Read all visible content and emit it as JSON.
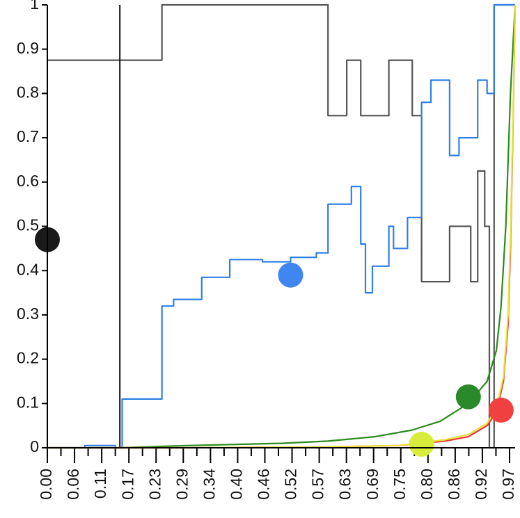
{
  "chart_data": {
    "type": "line",
    "title": "",
    "xlabel": "",
    "ylabel": "",
    "xlim": [
      0,
      1
    ],
    "ylim": [
      0,
      1
    ],
    "y_ticks": [
      "0",
      "0.1",
      "0.2",
      "0.3",
      "0.4",
      "0.5",
      "0.6",
      "0.7",
      "0.8",
      "0.9",
      "1"
    ],
    "x_tick_labels": [
      "0.00",
      "0.06",
      "0.11",
      "0.17",
      "0.23",
      "0.29",
      "0.34",
      "0.40",
      "0.46",
      "0.52",
      "0.57",
      "0.63",
      "0.69",
      "0.75",
      "0.80",
      "0.86",
      "0.92",
      "0.97"
    ],
    "grid": false,
    "legend": "none",
    "vertical_marker_x": 0.155,
    "series": [
      {
        "color": "#555555",
        "marker_color": "#1a1a1a",
        "marker": [
          0.0,
          0.47
        ],
        "x": [
          0.0,
          0.245,
          0.245,
          0.6,
          0.6,
          0.64,
          0.64,
          0.67,
          0.67,
          0.73,
          0.73,
          0.78,
          0.78,
          0.8,
          0.8,
          0.86,
          0.86,
          0.905,
          0.905,
          0.92,
          0.92,
          0.935,
          0.935,
          0.945,
          0.945,
          0.955,
          0.955,
          0.97,
          0.97,
          1.0
        ],
        "y": [
          0.875,
          0.875,
          1.0,
          1.0,
          0.75,
          0.75,
          0.875,
          0.875,
          0.75,
          0.75,
          0.875,
          0.875,
          0.75,
          0.75,
          0.375,
          0.375,
          0.5,
          0.5,
          0.375,
          0.375,
          0.625,
          0.625,
          0.5,
          0.5,
          0.0,
          0.0,
          1.0,
          1.0,
          1.0,
          1.0
        ]
      },
      {
        "color": "#2f7fe6",
        "marker_color": "#3f86f0",
        "marker": [
          0.52,
          0.39
        ],
        "x": [
          0.0,
          0.08,
          0.08,
          0.145,
          0.145,
          0.16,
          0.16,
          0.245,
          0.245,
          0.27,
          0.27,
          0.33,
          0.33,
          0.39,
          0.39,
          0.46,
          0.46,
          0.52,
          0.52,
          0.575,
          0.575,
          0.6,
          0.6,
          0.65,
          0.65,
          0.67,
          0.67,
          0.68,
          0.68,
          0.695,
          0.695,
          0.73,
          0.73,
          0.74,
          0.74,
          0.77,
          0.77,
          0.8,
          0.8,
          0.82,
          0.82,
          0.86,
          0.86,
          0.88,
          0.88,
          0.92,
          0.92,
          0.94,
          0.94,
          0.955,
          0.955,
          1.0
        ],
        "y": [
          0.0,
          0.0,
          0.005,
          0.005,
          0.0,
          0.0,
          0.11,
          0.11,
          0.32,
          0.32,
          0.335,
          0.335,
          0.385,
          0.385,
          0.425,
          0.425,
          0.42,
          0.42,
          0.43,
          0.43,
          0.44,
          0.44,
          0.55,
          0.55,
          0.59,
          0.59,
          0.46,
          0.46,
          0.35,
          0.35,
          0.41,
          0.41,
          0.5,
          0.5,
          0.45,
          0.45,
          0.52,
          0.52,
          0.78,
          0.78,
          0.83,
          0.83,
          0.66,
          0.66,
          0.7,
          0.7,
          0.83,
          0.83,
          0.8,
          0.8,
          1.0,
          1.0
        ]
      },
      {
        "color": "#2a8a1c",
        "marker_color": "#2a8a2a",
        "marker": [
          0.9,
          0.115
        ],
        "x": [
          0.0,
          0.155,
          0.3,
          0.5,
          0.6,
          0.7,
          0.78,
          0.84,
          0.9,
          0.94,
          0.96,
          0.97,
          0.98,
          0.99,
          1.0
        ],
        "y": [
          0.0,
          0.0,
          0.005,
          0.01,
          0.015,
          0.025,
          0.04,
          0.06,
          0.1,
          0.15,
          0.22,
          0.32,
          0.5,
          0.8,
          1.0
        ]
      },
      {
        "color": "#ee3333",
        "marker_color": "#f04040",
        "marker": [
          0.97,
          0.085
        ],
        "x": [
          0.0,
          0.3,
          0.6,
          0.75,
          0.85,
          0.9,
          0.94,
          0.96,
          0.975,
          0.985,
          0.99,
          0.995,
          1.0
        ],
        "y": [
          0.0,
          0.0,
          0.002,
          0.005,
          0.015,
          0.025,
          0.05,
          0.08,
          0.15,
          0.28,
          0.45,
          0.7,
          1.0
        ]
      },
      {
        "color": "#e8e23a",
        "marker_color": "#d9ec3c",
        "marker": [
          0.8,
          0.008
        ],
        "x": [
          0.0,
          0.3,
          0.6,
          0.75,
          0.85,
          0.9,
          0.94,
          0.96,
          0.975,
          0.985,
          0.99,
          0.995,
          1.0
        ],
        "y": [
          0.0,
          0.0,
          0.002,
          0.005,
          0.018,
          0.03,
          0.055,
          0.09,
          0.16,
          0.3,
          0.48,
          0.72,
          1.0
        ]
      }
    ]
  }
}
